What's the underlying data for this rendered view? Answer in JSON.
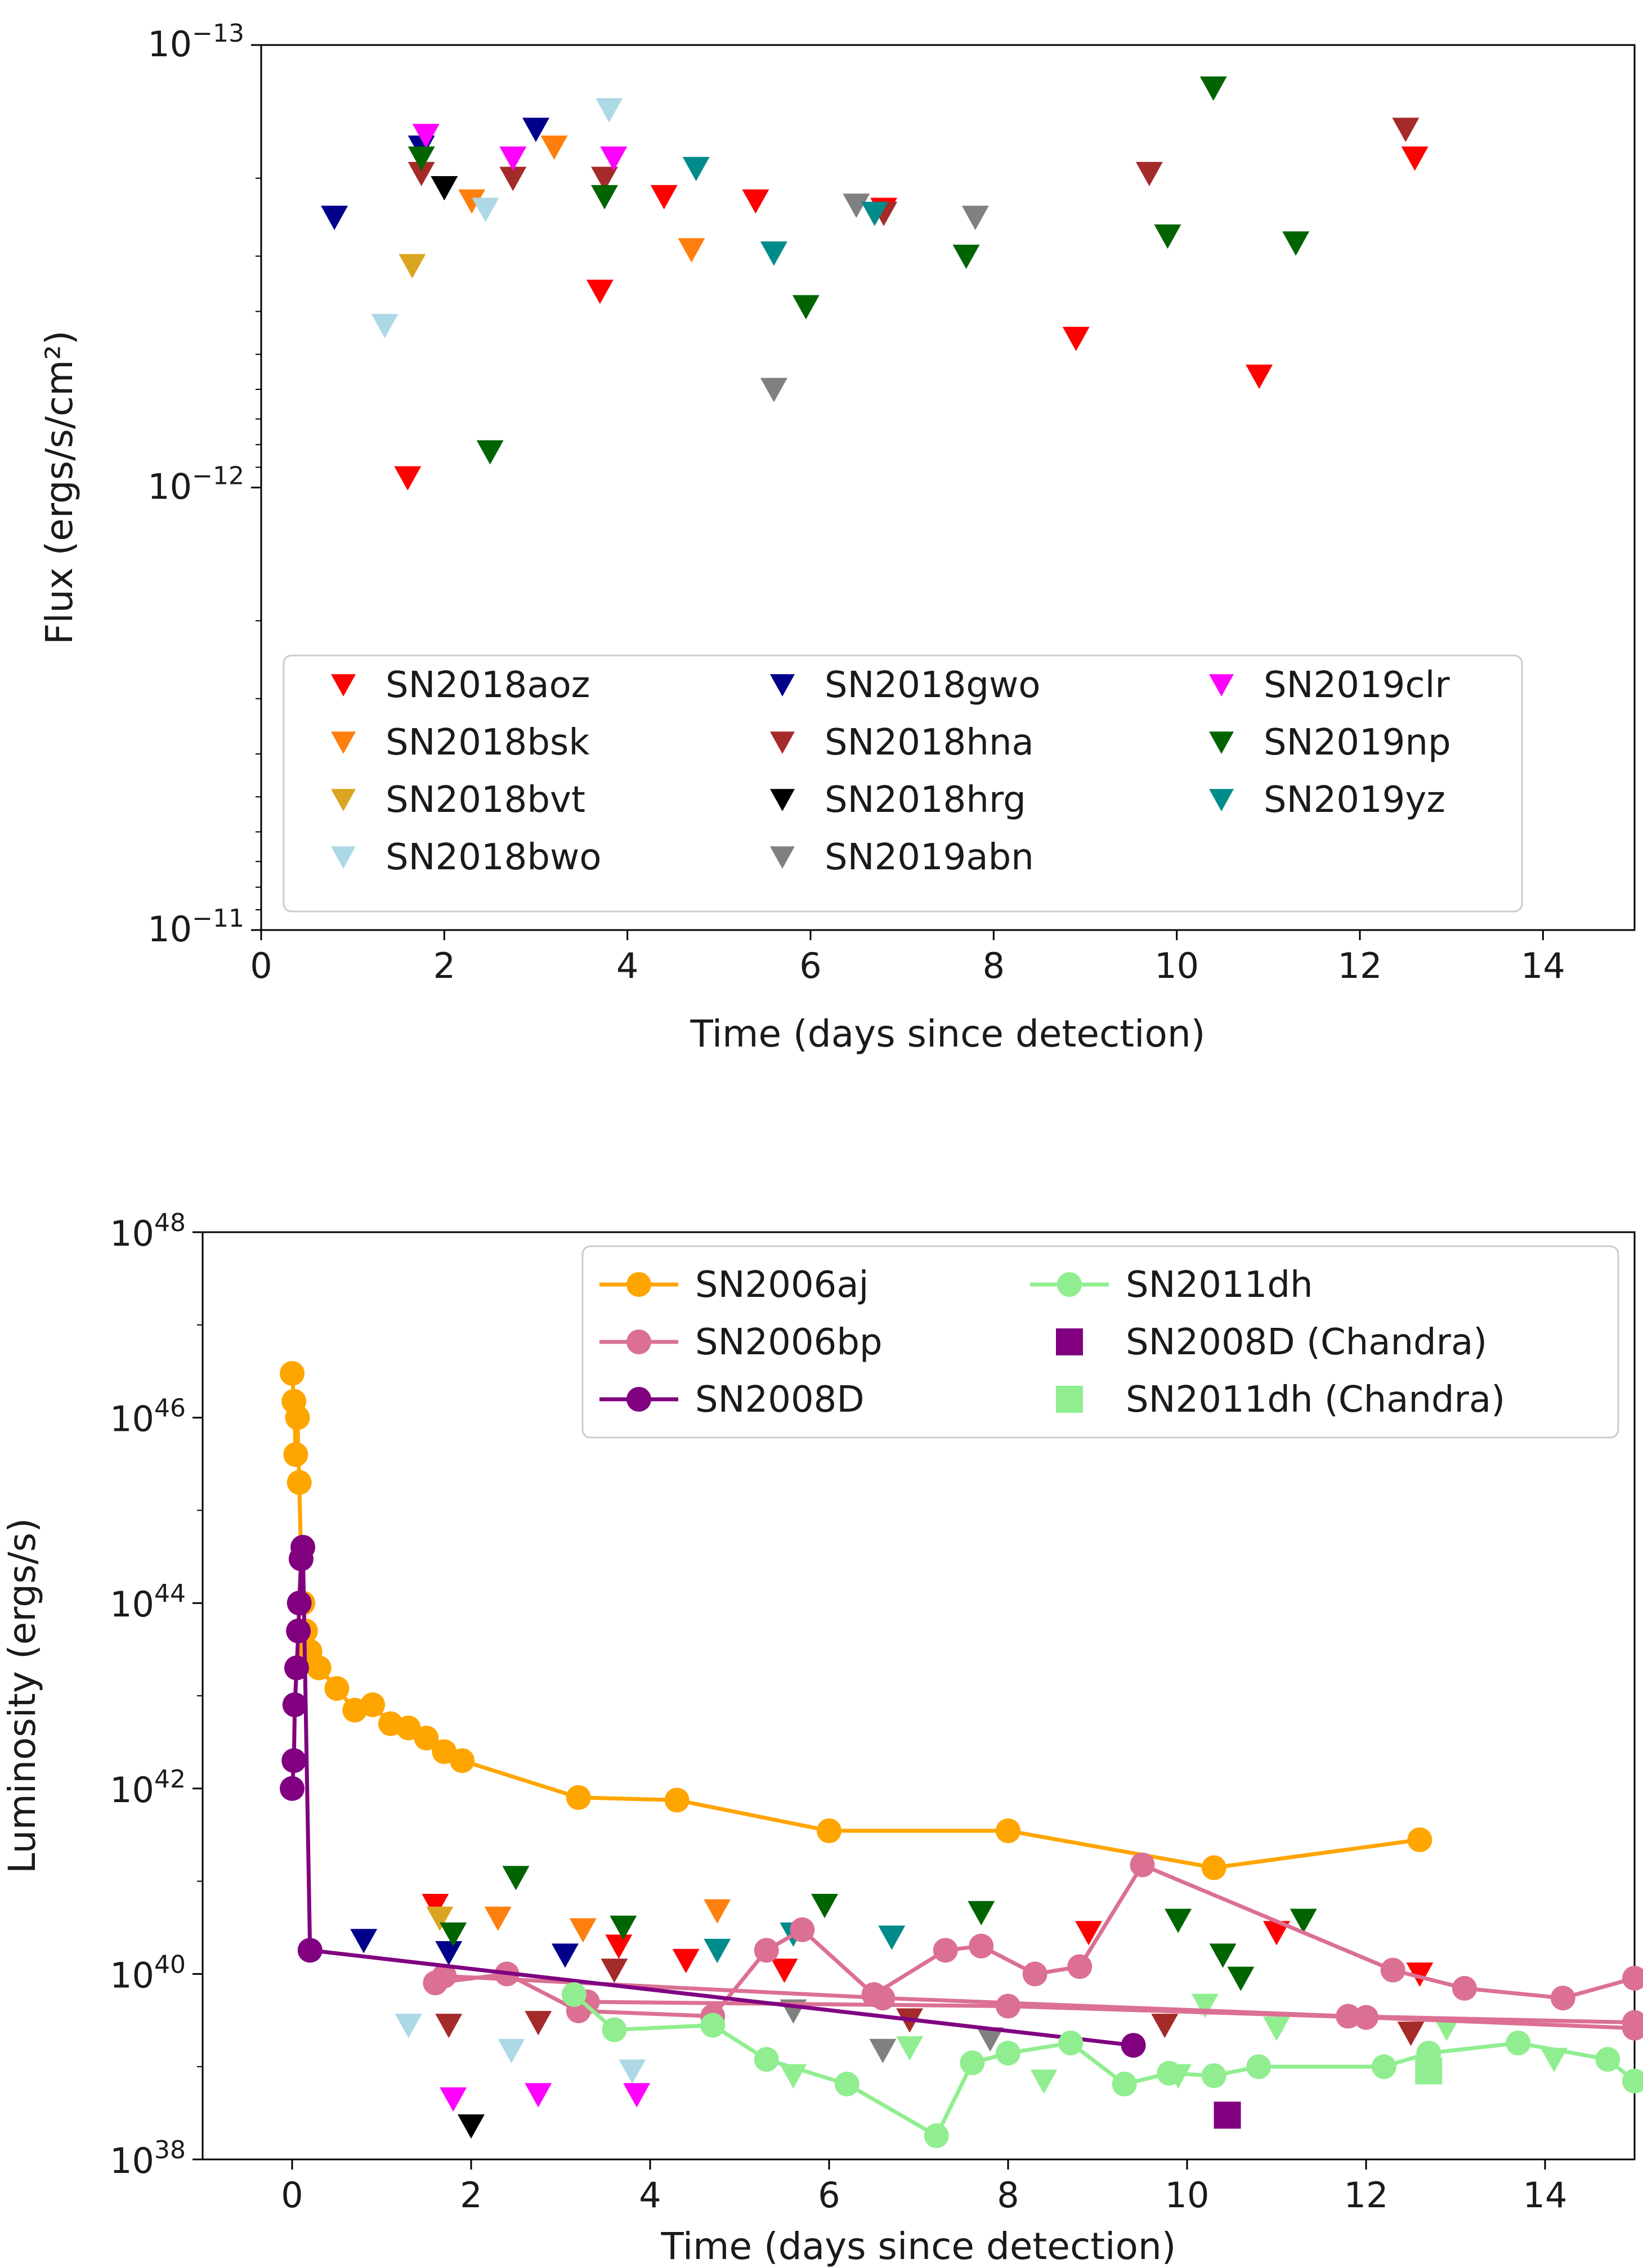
{
  "figure": {
    "background": "#ffffff"
  },
  "chart_data": [
    {
      "type": "scatter",
      "xlabel": "Time (days since detection)",
      "ylabel": "Flux (ergs/s/cm²)",
      "xlim": [
        0,
        15
      ],
      "ylim": [
        1e-11,
        1e-13
      ],
      "y_inverted": true,
      "yscale": "log",
      "xticks": [
        "0",
        "2",
        "4",
        "6",
        "8",
        "10",
        "12",
        "14"
      ],
      "yticks": [
        {
          "base": "10",
          "exp": "−13",
          "value": 1e-13
        },
        {
          "base": "10",
          "exp": "−12",
          "value": 1e-12
        },
        {
          "base": "10",
          "exp": "−11",
          "value": 1e-11
        }
      ],
      "marker": "triangle-down",
      "grid": false,
      "legend": {
        "position": "bottom",
        "columns": 3
      },
      "series": [
        {
          "name": "SN2018aoz",
          "color": "#ff0000",
          "points": [
            [
              1.6,
              9.5e-13
            ],
            [
              3.7,
              3.6e-13
            ],
            [
              4.4,
              2.2e-13
            ],
            [
              5.4,
              2.25e-13
            ],
            [
              6.8,
              2.35e-13
            ],
            [
              8.9,
              4.6e-13
            ],
            [
              10.9,
              5.6e-13
            ],
            [
              12.6,
              1.8e-13
            ]
          ]
        },
        {
          "name": "SN2018bsk",
          "color": "#ff7f0e",
          "points": [
            [
              2.3,
              2.25e-13
            ],
            [
              3.2,
              1.7e-13
            ],
            [
              4.7,
              2.9e-13
            ]
          ]
        },
        {
          "name": "SN2018bvt",
          "color": "#daa520",
          "points": [
            [
              1.65,
              3.15e-13
            ]
          ]
        },
        {
          "name": "SN2018bwo",
          "color": "#add8e6",
          "points": [
            [
              1.35,
              4.3e-13
            ],
            [
              2.45,
              2.35e-13
            ],
            [
              3.8,
              1.4e-13
            ]
          ]
        },
        {
          "name": "SN2018gwo",
          "color": "#00008b",
          "points": [
            [
              0.8,
              2.45e-13
            ],
            [
              1.75,
              1.7e-13
            ],
            [
              3.0,
              1.55e-13
            ]
          ]
        },
        {
          "name": "SN2018hna",
          "color": "#a52a2a",
          "points": [
            [
              1.75,
              1.95e-13
            ],
            [
              2.75,
              2e-13
            ],
            [
              3.75,
              2e-13
            ],
            [
              6.8,
              2.4e-13
            ],
            [
              9.7,
              1.95e-13
            ],
            [
              12.5,
              1.55e-13
            ]
          ]
        },
        {
          "name": "SN2018hrg",
          "color": "#000000",
          "points": [
            [
              2.0,
              2.1e-13
            ]
          ]
        },
        {
          "name": "SN2019abn",
          "color": "#808080",
          "points": [
            [
              5.6,
              6e-13
            ],
            [
              6.5,
              2.3e-13
            ],
            [
              7.8,
              2.45e-13
            ]
          ]
        },
        {
          "name": "SN2019clr",
          "color": "#ff00ff",
          "points": [
            [
              1.8,
              1.6e-13
            ],
            [
              2.75,
              1.8e-13
            ],
            [
              3.85,
              1.8e-13
            ]
          ]
        },
        {
          "name": "SN2019np",
          "color": "#006400",
          "points": [
            [
              1.75,
              1.8e-13
            ],
            [
              2.5,
              8.3e-13
            ],
            [
              3.75,
              2.2e-13
            ],
            [
              5.95,
              3.9e-13
            ],
            [
              7.7,
              3e-13
            ],
            [
              9.9,
              2.7e-13
            ],
            [
              10.4,
              1.25e-13
            ],
            [
              11.3,
              2.8e-13
            ]
          ]
        },
        {
          "name": "SN2019yz",
          "color": "#008b8b",
          "points": [
            [
              4.75,
              1.9e-13
            ],
            [
              5.6,
              2.95e-13
            ],
            [
              6.7,
              2.4e-13
            ]
          ]
        }
      ]
    },
    {
      "type": "line",
      "xlabel": "Time (days since detection)",
      "ylabel": "Luminosity (ergs/s)",
      "xlim": [
        -1,
        15
      ],
      "ylim": [
        1e+38,
        1e+48
      ],
      "yscale": "log",
      "xticks": [
        "0",
        "2",
        "4",
        "6",
        "8",
        "10",
        "12",
        "14"
      ],
      "yticks": [
        {
          "base": "10",
          "exp": "38",
          "value": 1e+38
        },
        {
          "base": "10",
          "exp": "40",
          "value": 1e+40
        },
        {
          "base": "10",
          "exp": "42",
          "value": 1e+42
        },
        {
          "base": "10",
          "exp": "44",
          "value": 1e+44
        },
        {
          "base": "10",
          "exp": "46",
          "value": 1e+46
        },
        {
          "base": "10",
          "exp": "48",
          "value": 1e+48
        }
      ],
      "grid": false,
      "legend": {
        "position": "top-right",
        "columns": 2,
        "entries": [
          {
            "name": "SN2006aj",
            "color": "#ffa500",
            "style": "line-circle"
          },
          {
            "name": "SN2006bp",
            "color": "#db7093",
            "style": "line-circle"
          },
          {
            "name": "SN2008D",
            "color": "#800080",
            "style": "line-circle"
          },
          {
            "name": "SN2011dh",
            "color": "#90ee90",
            "style": "line-circle"
          },
          {
            "name": "SN2008D (Chandra)",
            "color": "#800080",
            "style": "square"
          },
          {
            "name": "SN2011dh (Chandra)",
            "color": "#90ee90",
            "style": "square"
          }
        ]
      },
      "series": [
        {
          "name": "SN2006aj",
          "color": "#ffa500",
          "points": [
            [
              0.0,
              3e+46
            ],
            [
              0.02,
              1.5e+46
            ],
            [
              0.04,
              4e+45
            ],
            [
              0.06,
              1e+46
            ],
            [
              0.08,
              2e+45
            ],
            [
              0.1,
              3e+44
            ],
            [
              0.12,
              1e+44
            ],
            [
              0.15,
              5e+43
            ],
            [
              0.2,
              3e+43
            ],
            [
              0.3,
              2e+43
            ],
            [
              0.5,
              1.2e+43
            ],
            [
              0.7,
              7e+42
            ],
            [
              0.9,
              8e+42
            ],
            [
              1.1,
              5e+42
            ],
            [
              1.3,
              4.5e+42
            ],
            [
              1.5,
              3.5e+42
            ],
            [
              1.7,
              2.5e+42
            ],
            [
              1.9,
              2e+42
            ],
            [
              3.2,
              8e+41
            ],
            [
              4.3,
              7.5e+41
            ],
            [
              6.0,
              3.5e+41
            ],
            [
              8.0,
              3.5e+41
            ],
            [
              10.3,
              1.4e+41
            ],
            [
              12.6,
              2.8e+41
            ]
          ]
        },
        {
          "name": "SN2006bp",
          "color": "#db7093",
          "lines": [
            [
              [
                1.6,
                8e+39
              ],
              [
                2.4,
                1e+40
              ],
              [
                3.2,
                4e+39
              ],
              [
                4.7,
                3.5e+39
              ],
              [
                5.3,
                1.8e+40
              ],
              [
                5.7,
                3e+40
              ],
              [
                6.5,
                6e+39
              ],
              [
                7.3,
                1.8e+40
              ],
              [
                7.7,
                2e+40
              ],
              [
                8.3,
                1e+40
              ],
              [
                8.8,
                1.2e+40
              ],
              [
                9.5,
                1.5e+41
              ],
              [
                12.3,
                1.1e+40
              ],
              [
                13.1,
                7e+39
              ],
              [
                14.2,
                5.5e+39
              ],
              [
                15.0,
                9e+39
              ]
            ],
            [
              [
                1.7,
                9.5e+39
              ],
              [
                6.6,
                5.5e+39
              ],
              [
                11.8,
                3.5e+39
              ],
              [
                15.0,
                3e+39
              ]
            ],
            [
              [
                3.3,
                5e+39
              ],
              [
                8.0,
                4.5e+39
              ],
              [
                12.0,
                3.4e+39
              ],
              [
                15.0,
                2.6e+39
              ]
            ]
          ]
        },
        {
          "name": "SN2008D",
          "color": "#800080",
          "points": [
            [
              0.0,
              1e+42
            ],
            [
              0.02,
              2e+42
            ],
            [
              0.03,
              8e+42
            ],
            [
              0.05,
              2e+43
            ],
            [
              0.07,
              5e+43
            ],
            [
              0.08,
              1e+44
            ],
            [
              0.1,
              3e+44
            ],
            [
              0.12,
              4e+44
            ],
            [
              0.2,
              1.8e+40
            ],
            [
              9.4,
              1.7e+39
            ]
          ]
        },
        {
          "name": "SN2011dh",
          "color": "#90ee90",
          "points": [
            [
              3.15,
              6e+39
            ],
            [
              3.6,
              2.5e+39
            ],
            [
              4.7,
              2.8e+39
            ],
            [
              5.3,
              1.2e+39
            ],
            [
              6.2,
              6.5e+38
            ],
            [
              7.2,
              1.8e+38
            ],
            [
              7.6,
              1.1e+39
            ],
            [
              8.0,
              1.4e+39
            ],
            [
              8.7,
              1.8e+39
            ],
            [
              9.3,
              6.5e+38
            ],
            [
              9.8,
              8.5e+38
            ],
            [
              10.3,
              8e+38
            ],
            [
              10.8,
              1e+39
            ],
            [
              12.2,
              1e+39
            ],
            [
              12.7,
              1.4e+39
            ],
            [
              13.7,
              1.8e+39
            ],
            [
              14.7,
              1.2e+39
            ],
            [
              15.0,
              7e+38
            ]
          ]
        },
        {
          "name": "SN2008D (Chandra)",
          "color": "#800080",
          "marker": "square",
          "points": [
            [
              10.45,
              3e+38
            ]
          ]
        },
        {
          "name": "SN2011dh (Chandra)",
          "color": "#90ee90",
          "marker": "square",
          "points": [
            [
              12.7,
              9e+38
            ]
          ]
        }
      ],
      "upper_limits": [
        {
          "color": "#ff0000",
          "points": [
            [
              1.6,
              5.5e+40
            ],
            [
              3.65,
              2e+40
            ],
            [
              4.4,
              1.4e+40
            ],
            [
              5.5,
              1.1e+40
            ],
            [
              8.9,
              2.8e+40
            ],
            [
              11.0,
              2.8e+40
            ],
            [
              12.6,
              1e+40
            ]
          ]
        },
        {
          "color": "#ff7f0e",
          "points": [
            [
              2.3,
              4e+40
            ],
            [
              3.25,
              3e+40
            ],
            [
              4.75,
              4.8e+40
            ]
          ]
        },
        {
          "color": "#daa520",
          "points": [
            [
              1.65,
              4e+40
            ]
          ]
        },
        {
          "color": "#add8e6",
          "points": [
            [
              1.3,
              2.8e+39
            ],
            [
              2.45,
              1.5e+39
            ],
            [
              3.8,
              9e+38
            ]
          ]
        },
        {
          "color": "#00008b",
          "points": [
            [
              0.8,
              2.3e+40
            ],
            [
              1.75,
              1.7e+40
            ],
            [
              3.05,
              1.6e+40
            ]
          ]
        },
        {
          "color": "#a52a2a",
          "points": [
            [
              1.75,
              2.8e+39
            ],
            [
              2.75,
              3e+39
            ],
            [
              3.6,
              1.1e+40
            ],
            [
              6.9,
              3.2e+39
            ],
            [
              9.75,
              2.8e+39
            ],
            [
              12.5,
              2.3e+39
            ]
          ]
        },
        {
          "color": "#000000",
          "points": [
            [
              2.0,
              2.3e+38
            ]
          ]
        },
        {
          "color": "#808080",
          "points": [
            [
              5.6,
              4e+39
            ],
            [
              6.6,
              1.5e+39
            ],
            [
              7.8,
              2e+39
            ]
          ]
        },
        {
          "color": "#ff00ff",
          "points": [
            [
              1.8,
              4.5e+38
            ],
            [
              2.75,
              5e+38
            ],
            [
              3.85,
              5e+38
            ]
          ]
        },
        {
          "color": "#006400",
          "points": [
            [
              1.8,
              2.7e+40
            ],
            [
              2.5,
              1.1e+41
            ],
            [
              3.7,
              3.2e+40
            ],
            [
              5.95,
              5.5e+40
            ],
            [
              7.7,
              4.6e+40
            ],
            [
              9.9,
              3.8e+40
            ],
            [
              10.4,
              1.6e+40
            ],
            [
              10.6,
              9e+39
            ],
            [
              11.3,
              3.8e+40
            ]
          ]
        },
        {
          "color": "#008b8b",
          "points": [
            [
              4.75,
              1.8e+40
            ],
            [
              5.6,
              2.7e+40
            ],
            [
              6.7,
              2.5e+40
            ]
          ]
        },
        {
          "color": "#90ee90",
          "points": [
            [
              5.6,
              8e+38
            ],
            [
              6.9,
              1.6e+39
            ],
            [
              8.4,
              7e+38
            ],
            [
              9.9,
              8e+38
            ],
            [
              10.2,
              4.6e+39
            ],
            [
              11.0,
              2.6e+39
            ],
            [
              12.9,
              2.6e+39
            ],
            [
              14.1,
              1.2e+39
            ]
          ]
        }
      ]
    }
  ]
}
